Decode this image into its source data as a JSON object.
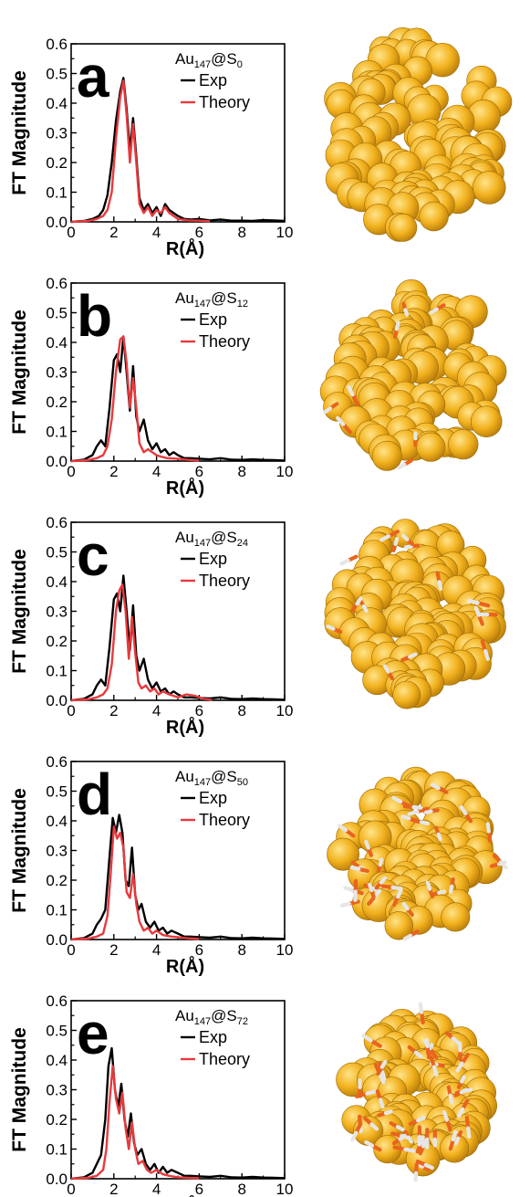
{
  "figure": {
    "colors": {
      "exp": "#000000",
      "theory": "#e8393d",
      "gold": "#f2b21e",
      "sulfur": "#e8641e",
      "hydrogen": "#e6e6e6"
    }
  },
  "chart_data": [
    {
      "type": "line",
      "panel_letter": "a",
      "title": {
        "base": "Au",
        "sub1": "147",
        "mid": "@S",
        "sub2": "0"
      },
      "ylabel": "FT Magnitude",
      "xlabel": "R(Å)",
      "xlim": [
        0,
        10
      ],
      "ylim": [
        0,
        0.6
      ],
      "x_ticks": [
        "0",
        "2",
        "4",
        "6",
        "8",
        "10"
      ],
      "y_ticks": [
        "0.0",
        "0.1",
        "0.2",
        "0.3",
        "0.4",
        "0.5",
        "0.6"
      ],
      "legend": {
        "placement": "top-right",
        "entries": [
          "Exp",
          "Theory"
        ]
      },
      "shell_count": 0,
      "series": [
        {
          "name": "Exp",
          "x": [
            0,
            0.6,
            1.0,
            1.3,
            1.5,
            1.7,
            1.9,
            2.1,
            2.3,
            2.45,
            2.6,
            2.75,
            2.9,
            3.05,
            3.2,
            3.4,
            3.6,
            3.8,
            4.0,
            4.2,
            4.4,
            4.6,
            4.8,
            5.0,
            5.3,
            5.6,
            6.0,
            6.5,
            7.0,
            7.5,
            8.0,
            8.5,
            9.0,
            9.5,
            10
          ],
          "y": [
            0,
            0.003,
            0.01,
            0.02,
            0.04,
            0.09,
            0.2,
            0.34,
            0.44,
            0.485,
            0.38,
            0.24,
            0.35,
            0.22,
            0.08,
            0.04,
            0.06,
            0.03,
            0.05,
            0.02,
            0.06,
            0.04,
            0.03,
            0.02,
            0.01,
            0.008,
            0.01,
            0.005,
            0.008,
            0.004,
            0.004,
            0.003,
            0.006,
            0.005,
            0.003
          ]
        },
        {
          "name": "Theory",
          "x": [
            0,
            0.8,
            1.2,
            1.5,
            1.7,
            1.9,
            2.1,
            2.3,
            2.45,
            2.6,
            2.75,
            2.9,
            3.05,
            3.2,
            3.4,
            3.6,
            3.8,
            4.0,
            4.2,
            4.4,
            4.6,
            4.8,
            5.0,
            5.5,
            6.0,
            6.5
          ],
          "y": [
            0,
            0.003,
            0.01,
            0.02,
            0.04,
            0.1,
            0.28,
            0.42,
            0.475,
            0.36,
            0.2,
            0.33,
            0.2,
            0.06,
            0.03,
            0.05,
            0.02,
            0.04,
            0.03,
            0.05,
            0.03,
            0.02,
            0.01,
            0.005,
            0.004,
            0.002
          ]
        }
      ]
    },
    {
      "type": "line",
      "panel_letter": "b",
      "title": {
        "base": "Au",
        "sub1": "147",
        "mid": "@S",
        "sub2": "12"
      },
      "ylabel": "FT Magnitude",
      "xlabel": "R(Å)",
      "xlim": [
        0,
        10
      ],
      "ylim": [
        0,
        0.6
      ],
      "x_ticks": [
        "0",
        "2",
        "4",
        "6",
        "8",
        "10"
      ],
      "y_ticks": [
        "0.0",
        "0.1",
        "0.2",
        "0.3",
        "0.4",
        "0.5",
        "0.6"
      ],
      "legend": {
        "placement": "top-right",
        "entries": [
          "Exp",
          "Theory"
        ]
      },
      "shell_count": 12,
      "series": [
        {
          "name": "Exp",
          "x": [
            0,
            0.6,
            1.0,
            1.2,
            1.4,
            1.6,
            1.8,
            2.0,
            2.15,
            2.3,
            2.45,
            2.6,
            2.75,
            2.9,
            3.05,
            3.2,
            3.4,
            3.6,
            3.8,
            4.0,
            4.2,
            4.4,
            4.6,
            4.8,
            5.0,
            5.3,
            5.6,
            6.0,
            6.5,
            7.0,
            7.5,
            8.0,
            8.5,
            9.0,
            9.5,
            10
          ],
          "y": [
            0,
            0.005,
            0.02,
            0.05,
            0.07,
            0.05,
            0.18,
            0.34,
            0.36,
            0.3,
            0.42,
            0.3,
            0.17,
            0.32,
            0.15,
            0.1,
            0.14,
            0.07,
            0.04,
            0.06,
            0.03,
            0.04,
            0.02,
            0.03,
            0.02,
            0.01,
            0.01,
            0.008,
            0.006,
            0.01,
            0.005,
            0.004,
            0.006,
            0.004,
            0.003,
            0.002
          ]
        },
        {
          "name": "Theory",
          "x": [
            0,
            0.8,
            1.2,
            1.5,
            1.7,
            1.9,
            2.1,
            2.3,
            2.45,
            2.6,
            2.75,
            2.9,
            3.05,
            3.2,
            3.4,
            3.6,
            3.8,
            4.0,
            4.2,
            4.5,
            5.0,
            5.5,
            6.0
          ],
          "y": [
            0,
            0.003,
            0.01,
            0.02,
            0.05,
            0.14,
            0.3,
            0.41,
            0.42,
            0.33,
            0.18,
            0.28,
            0.18,
            0.06,
            0.03,
            0.04,
            0.03,
            0.02,
            0.015,
            0.01,
            0.008,
            0.004,
            0.002
          ]
        }
      ]
    },
    {
      "type": "line",
      "panel_letter": "c",
      "title": {
        "base": "Au",
        "sub1": "147",
        "mid": "@S",
        "sub2": "24"
      },
      "ylabel": "FT Magnitude",
      "xlabel": "R(Å)",
      "xlim": [
        0,
        10
      ],
      "ylim": [
        0,
        0.6
      ],
      "x_ticks": [
        "0",
        "2",
        "4",
        "6",
        "8",
        "10"
      ],
      "y_ticks": [
        "0.0",
        "0.1",
        "0.2",
        "0.3",
        "0.4",
        "0.5",
        "0.6"
      ],
      "legend": {
        "placement": "top-right",
        "entries": [
          "Exp",
          "Theory"
        ]
      },
      "shell_count": 24,
      "series": [
        {
          "name": "Exp",
          "x": [
            0,
            0.6,
            1.0,
            1.2,
            1.4,
            1.6,
            1.8,
            2.0,
            2.15,
            2.3,
            2.45,
            2.6,
            2.75,
            2.9,
            3.05,
            3.2,
            3.4,
            3.6,
            3.8,
            4.0,
            4.2,
            4.4,
            4.6,
            4.8,
            5.0,
            5.3,
            5.6,
            6.0,
            6.5,
            7.0,
            7.5,
            8.0,
            8.5,
            9.0,
            9.5,
            10
          ],
          "y": [
            0,
            0.005,
            0.02,
            0.05,
            0.07,
            0.05,
            0.18,
            0.34,
            0.36,
            0.3,
            0.42,
            0.3,
            0.17,
            0.32,
            0.15,
            0.1,
            0.14,
            0.07,
            0.04,
            0.06,
            0.03,
            0.04,
            0.02,
            0.03,
            0.02,
            0.01,
            0.01,
            0.008,
            0.006,
            0.01,
            0.005,
            0.004,
            0.006,
            0.004,
            0.003,
            0.002
          ]
        },
        {
          "name": "Theory",
          "x": [
            0,
            0.8,
            1.2,
            1.5,
            1.7,
            1.9,
            2.1,
            2.25,
            2.4,
            2.55,
            2.7,
            2.85,
            3.0,
            3.15,
            3.3,
            3.5,
            3.7,
            3.9,
            4.1,
            4.3,
            4.6,
            5.0,
            5.4,
            5.8,
            6.2,
            6.6
          ],
          "y": [
            0,
            0.003,
            0.01,
            0.02,
            0.04,
            0.12,
            0.3,
            0.37,
            0.39,
            0.3,
            0.14,
            0.28,
            0.16,
            0.06,
            0.04,
            0.05,
            0.03,
            0.04,
            0.02,
            0.03,
            0.02,
            0.01,
            0.02,
            0.015,
            0.005,
            0.002
          ]
        }
      ]
    },
    {
      "type": "line",
      "panel_letter": "d",
      "title": {
        "base": "Au",
        "sub1": "147",
        "mid": "@S",
        "sub2": "50"
      },
      "ylabel": "FT Magnitude",
      "xlabel": "R(Å)",
      "xlim": [
        0,
        10
      ],
      "ylim": [
        0,
        0.6
      ],
      "x_ticks": [
        "0",
        "2",
        "4",
        "6",
        "8",
        "10"
      ],
      "y_ticks": [
        "0.0",
        "0.1",
        "0.2",
        "0.3",
        "0.4",
        "0.5",
        "0.6"
      ],
      "legend": {
        "placement": "top-right",
        "entries": [
          "Exp",
          "Theory"
        ]
      },
      "shell_count": 50,
      "series": [
        {
          "name": "Exp",
          "x": [
            0,
            0.6,
            1.0,
            1.2,
            1.4,
            1.6,
            1.8,
            1.95,
            2.1,
            2.25,
            2.4,
            2.55,
            2.7,
            2.85,
            3.0,
            3.15,
            3.3,
            3.5,
            3.7,
            3.9,
            4.1,
            4.3,
            4.5,
            4.7,
            5.0,
            5.3,
            5.6,
            6.0,
            6.5,
            7.0,
            7.5,
            8.0,
            8.5,
            9.0,
            9.5,
            10
          ],
          "y": [
            0,
            0.005,
            0.02,
            0.05,
            0.07,
            0.1,
            0.28,
            0.41,
            0.36,
            0.42,
            0.36,
            0.2,
            0.18,
            0.31,
            0.15,
            0.1,
            0.12,
            0.06,
            0.04,
            0.06,
            0.03,
            0.04,
            0.02,
            0.03,
            0.02,
            0.01,
            0.01,
            0.008,
            0.006,
            0.01,
            0.005,
            0.004,
            0.006,
            0.004,
            0.003,
            0.002
          ]
        },
        {
          "name": "Theory",
          "x": [
            0,
            0.8,
            1.2,
            1.5,
            1.7,
            1.85,
            2.0,
            2.15,
            2.3,
            2.45,
            2.6,
            2.75,
            2.9,
            3.05,
            3.2,
            3.4,
            3.6,
            3.8,
            4.0,
            4.3,
            4.7,
            5.0,
            5.5,
            6.0
          ],
          "y": [
            0,
            0.003,
            0.01,
            0.02,
            0.08,
            0.22,
            0.38,
            0.34,
            0.36,
            0.31,
            0.16,
            0.14,
            0.22,
            0.12,
            0.06,
            0.03,
            0.04,
            0.02,
            0.03,
            0.015,
            0.01,
            0.008,
            0.004,
            0.002
          ]
        }
      ]
    },
    {
      "type": "line",
      "panel_letter": "e",
      "title": {
        "base": "Au",
        "sub1": "147",
        "mid": "@S",
        "sub2": "72"
      },
      "ylabel": "FT Magnitude",
      "xlabel": "R(Å)",
      "xlim": [
        0,
        10
      ],
      "ylim": [
        0,
        0.6
      ],
      "x_ticks": [
        "0",
        "2",
        "4",
        "6",
        "8",
        "10"
      ],
      "y_ticks": [
        "0.0",
        "0.1",
        "0.2",
        "0.3",
        "0.4",
        "0.5",
        "0.6"
      ],
      "legend": {
        "placement": "top-right",
        "entries": [
          "Exp",
          "Theory"
        ]
      },
      "shell_count": 72,
      "series": [
        {
          "name": "Exp",
          "x": [
            0,
            0.6,
            1.0,
            1.2,
            1.4,
            1.6,
            1.75,
            1.9,
            2.05,
            2.2,
            2.35,
            2.5,
            2.65,
            2.8,
            2.95,
            3.1,
            3.3,
            3.5,
            3.7,
            3.9,
            4.1,
            4.3,
            4.5,
            4.7,
            5.0,
            5.3,
            5.6,
            6.0,
            6.5,
            7.0,
            7.5,
            8.0,
            8.5,
            9.0,
            9.5,
            10
          ],
          "y": [
            0,
            0.005,
            0.02,
            0.05,
            0.08,
            0.2,
            0.38,
            0.44,
            0.3,
            0.24,
            0.32,
            0.2,
            0.14,
            0.22,
            0.12,
            0.08,
            0.1,
            0.05,
            0.03,
            0.05,
            0.02,
            0.04,
            0.02,
            0.03,
            0.02,
            0.01,
            0.01,
            0.008,
            0.006,
            0.01,
            0.005,
            0.004,
            0.006,
            0.004,
            0.003,
            0.002
          ]
        },
        {
          "name": "Theory",
          "x": [
            0,
            0.8,
            1.2,
            1.5,
            1.65,
            1.8,
            1.95,
            2.1,
            2.25,
            2.4,
            2.55,
            2.7,
            2.85,
            3.0,
            3.15,
            3.35,
            3.55,
            3.75,
            4.0,
            4.3,
            4.6,
            5.0,
            5.5,
            6.0
          ],
          "y": [
            0,
            0.003,
            0.01,
            0.03,
            0.1,
            0.26,
            0.38,
            0.27,
            0.22,
            0.29,
            0.17,
            0.1,
            0.19,
            0.1,
            0.05,
            0.06,
            0.03,
            0.02,
            0.03,
            0.015,
            0.01,
            0.005,
            0.003,
            0.002
          ]
        }
      ]
    }
  ]
}
